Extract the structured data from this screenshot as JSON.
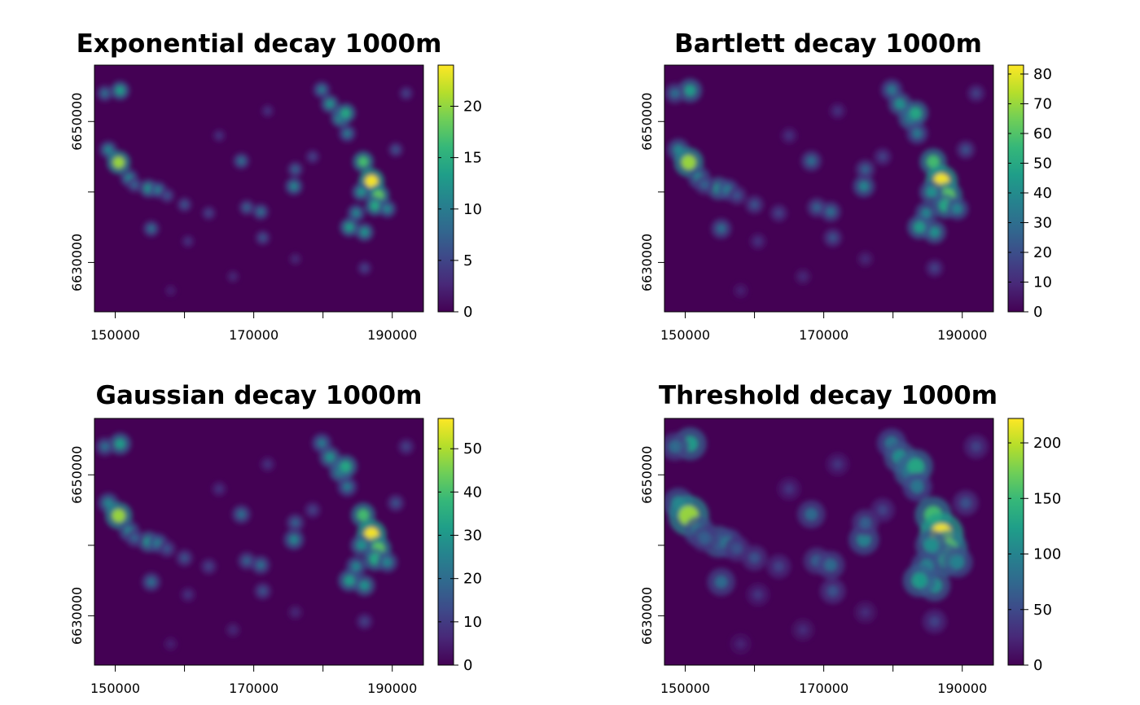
{
  "colors": {
    "viridis": [
      "#440154",
      "#482878",
      "#3e4989",
      "#31688e",
      "#26828e",
      "#1f9e89",
      "#35b779",
      "#6ece58",
      "#b5de2b",
      "#fde725"
    ],
    "raster_background": "#440154",
    "axis": "#000000"
  },
  "chart_data": [
    {
      "type": "heatmap",
      "title": "Exponential decay 1000m",
      "x_ticks": [
        "150000",
        "170000",
        "190000"
      ],
      "x_tick_values": [
        150000,
        160000,
        170000,
        180000,
        190000
      ],
      "y_ticks": [
        "6630000",
        "6650000"
      ],
      "y_tick_values": [
        6630000,
        6640000,
        6650000
      ],
      "xlim": [
        147000,
        194500
      ],
      "ylim": [
        6623000,
        6658000
      ],
      "legend_ticks": [
        "0",
        "5",
        "10",
        "15",
        "20"
      ],
      "legend_values": [
        0,
        5,
        10,
        15,
        20
      ],
      "legend_range": [
        0,
        24
      ],
      "legend_position": "right",
      "hotspot_scale": 1.0
    },
    {
      "type": "heatmap",
      "title": "Bartlett decay 1000m",
      "x_ticks": [
        "150000",
        "170000",
        "190000"
      ],
      "x_tick_values": [
        150000,
        160000,
        170000,
        180000,
        190000
      ],
      "y_ticks": [
        "6630000",
        "6650000"
      ],
      "y_tick_values": [
        6630000,
        6640000,
        6650000
      ],
      "xlim": [
        147000,
        194500
      ],
      "ylim": [
        6623000,
        6658000
      ],
      "legend_ticks": [
        "0",
        "10",
        "20",
        "30",
        "40",
        "50",
        "60",
        "70",
        "80"
      ],
      "legend_values": [
        0,
        10,
        20,
        30,
        40,
        50,
        60,
        70,
        80
      ],
      "legend_range": [
        0,
        83
      ],
      "legend_position": "right",
      "hotspot_scale": 1.25
    },
    {
      "type": "heatmap",
      "title": "Gaussian decay 1000m",
      "x_ticks": [
        "150000",
        "170000",
        "190000"
      ],
      "x_tick_values": [
        150000,
        160000,
        170000,
        180000,
        190000
      ],
      "y_ticks": [
        "6630000",
        "6650000"
      ],
      "y_tick_values": [
        6630000,
        6640000,
        6650000
      ],
      "xlim": [
        147000,
        194500
      ],
      "ylim": [
        6623000,
        6658000
      ],
      "legend_ticks": [
        "0",
        "10",
        "20",
        "30",
        "40",
        "50"
      ],
      "legend_values": [
        0,
        10,
        20,
        30,
        40,
        50
      ],
      "legend_range": [
        0,
        57
      ],
      "legend_position": "right",
      "hotspot_scale": 1.15
    },
    {
      "type": "heatmap",
      "title": "Threshold decay 1000m",
      "x_ticks": [
        "150000",
        "170000",
        "190000"
      ],
      "x_tick_values": [
        150000,
        160000,
        170000,
        180000,
        190000
      ],
      "y_ticks": [
        "6630000",
        "6650000"
      ],
      "y_tick_values": [
        6630000,
        6640000,
        6650000
      ],
      "xlim": [
        147000,
        194500
      ],
      "ylim": [
        6623000,
        6658000
      ],
      "legend_ticks": [
        "0",
        "50",
        "100",
        "150",
        "200"
      ],
      "legend_values": [
        0,
        50,
        100,
        150,
        200
      ],
      "legend_range": [
        0,
        222
      ],
      "legend_position": "right",
      "hotspot_scale": 1.7
    }
  ],
  "hotspots": [
    {
      "x": 150700,
      "y": 6654400,
      "v": 0.55
    },
    {
      "x": 148500,
      "y": 6654000,
      "v": 0.35
    },
    {
      "x": 149000,
      "y": 6646000,
      "v": 0.45
    },
    {
      "x": 150500,
      "y": 6644200,
      "v": 0.85
    },
    {
      "x": 152000,
      "y": 6642000,
      "v": 0.45
    },
    {
      "x": 154800,
      "y": 6640500,
      "v": 0.5
    },
    {
      "x": 156200,
      "y": 6640300,
      "v": 0.4
    },
    {
      "x": 157500,
      "y": 6639500,
      "v": 0.25
    },
    {
      "x": 155200,
      "y": 6634800,
      "v": 0.35
    },
    {
      "x": 160000,
      "y": 6638200,
      "v": 0.25
    },
    {
      "x": 163500,
      "y": 6637000,
      "v": 0.2
    },
    {
      "x": 168200,
      "y": 6644400,
      "v": 0.35
    },
    {
      "x": 169000,
      "y": 6637800,
      "v": 0.3
    },
    {
      "x": 171000,
      "y": 6637200,
      "v": 0.35
    },
    {
      "x": 171300,
      "y": 6633500,
      "v": 0.25
    },
    {
      "x": 175800,
      "y": 6640800,
      "v": 0.45
    },
    {
      "x": 179800,
      "y": 6654500,
      "v": 0.4
    },
    {
      "x": 181000,
      "y": 6652500,
      "v": 0.5
    },
    {
      "x": 182500,
      "y": 6650500,
      "v": 0.55
    },
    {
      "x": 183300,
      "y": 6651200,
      "v": 0.6
    },
    {
      "x": 183500,
      "y": 6648300,
      "v": 0.4
    },
    {
      "x": 185800,
      "y": 6644300,
      "v": 0.7
    },
    {
      "x": 187000,
      "y": 6641500,
      "v": 1.0
    },
    {
      "x": 188000,
      "y": 6639500,
      "v": 0.75
    },
    {
      "x": 187500,
      "y": 6638000,
      "v": 0.6
    },
    {
      "x": 185500,
      "y": 6640000,
      "v": 0.5
    },
    {
      "x": 184800,
      "y": 6637000,
      "v": 0.45
    },
    {
      "x": 189300,
      "y": 6637600,
      "v": 0.45
    },
    {
      "x": 186000,
      "y": 6634300,
      "v": 0.5
    },
    {
      "x": 183800,
      "y": 6635000,
      "v": 0.55
    },
    {
      "x": 192000,
      "y": 6654000,
      "v": 0.2
    },
    {
      "x": 176000,
      "y": 6643200,
      "v": 0.3
    },
    {
      "x": 152800,
      "y": 6641000,
      "v": 0.3
    },
    {
      "x": 160500,
      "y": 6633000,
      "v": 0.15
    },
    {
      "x": 165000,
      "y": 6648000,
      "v": 0.15
    },
    {
      "x": 172000,
      "y": 6651500,
      "v": 0.15
    },
    {
      "x": 178500,
      "y": 6645000,
      "v": 0.2
    },
    {
      "x": 190500,
      "y": 6646000,
      "v": 0.25
    },
    {
      "x": 186000,
      "y": 6629200,
      "v": 0.2
    },
    {
      "x": 176000,
      "y": 6630500,
      "v": 0.12
    },
    {
      "x": 167000,
      "y": 6628000,
      "v": 0.12
    },
    {
      "x": 158000,
      "y": 6626000,
      "v": 0.1
    }
  ]
}
